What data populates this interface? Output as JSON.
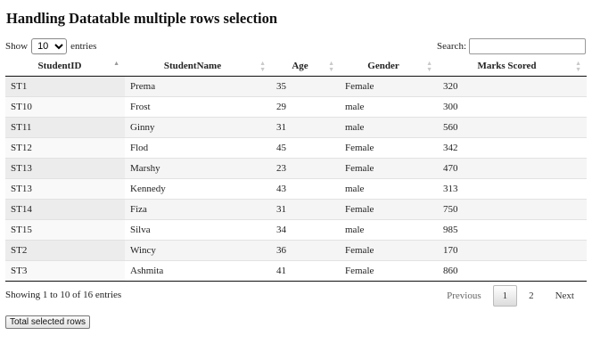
{
  "title": "Handling Datatable multiple rows selection",
  "length": {
    "label_before": "Show",
    "selected": "10",
    "label_after": "entries"
  },
  "search": {
    "label": "Search:",
    "value": ""
  },
  "table": {
    "headers": [
      "StudentID",
      "StudentName",
      "Age",
      "Gender",
      "Marks Scored"
    ],
    "rows": [
      [
        "ST1",
        "Prema",
        "35",
        "Female",
        "320"
      ],
      [
        "ST10",
        "Frost",
        "29",
        "male",
        "300"
      ],
      [
        "ST11",
        "Ginny",
        "31",
        "male",
        "560"
      ],
      [
        "ST12",
        "Flod",
        "45",
        "Female",
        "342"
      ],
      [
        "ST13",
        "Marshy",
        "23",
        "Female",
        "470"
      ],
      [
        "ST13",
        "Kennedy",
        "43",
        "male",
        "313"
      ],
      [
        "ST14",
        "Fiza",
        "31",
        "Female",
        "750"
      ],
      [
        "ST15",
        "Silva",
        "34",
        "male",
        "985"
      ],
      [
        "ST2",
        "Wincy",
        "36",
        "Female",
        "170"
      ],
      [
        "ST3",
        "Ashmita",
        "41",
        "Female",
        "860"
      ]
    ]
  },
  "info": "Showing 1 to 10 of 16 entries",
  "pagination": {
    "previous": "Previous",
    "pages": [
      "1",
      "2"
    ],
    "current": "1",
    "next": "Next"
  },
  "action_button": "Total selected rows",
  "colors": {
    "header_rule": "#111111",
    "stripe": "#f5f5f5",
    "sorted_column": "#ececec"
  }
}
